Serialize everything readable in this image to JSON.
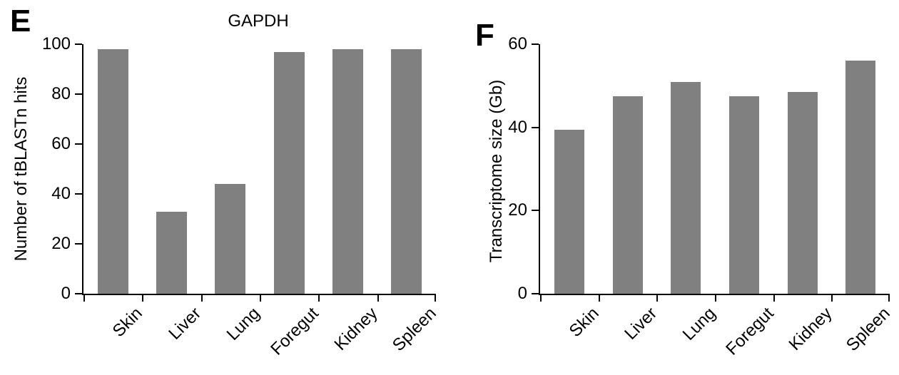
{
  "figure": {
    "background": "#ffffff",
    "axis_color": "#000000"
  },
  "chart_data": [
    {
      "type": "bar",
      "panel": "E",
      "title": "GAPDH",
      "xlabel": "",
      "ylabel": "Number of tBLASTn hits",
      "categories": [
        "Skin",
        "Liver",
        "Lung",
        "Foregut",
        "Kidney",
        "Spleen"
      ],
      "values": [
        98,
        33,
        44,
        97,
        98,
        98
      ],
      "ylim": [
        0,
        100
      ],
      "ytick_step": 20,
      "ytick_labels": [
        "0",
        "20",
        "40",
        "60",
        "80",
        "100"
      ],
      "bar_color": "#808080",
      "grid": false,
      "legend": "none"
    },
    {
      "type": "bar",
      "panel": "F",
      "title": "",
      "xlabel": "",
      "ylabel": "Transcriptome size (Gb)",
      "categories": [
        "Skin",
        "Liver",
        "Lung",
        "Foregut",
        "Kidney",
        "Spleen"
      ],
      "values": [
        39.5,
        47.5,
        51,
        47.5,
        48.5,
        56
      ],
      "ylim": [
        0,
        60
      ],
      "ytick_step": 20,
      "ytick_labels": [
        "0",
        "20",
        "40",
        "60"
      ],
      "bar_color": "#808080",
      "grid": false,
      "legend": "none"
    }
  ]
}
